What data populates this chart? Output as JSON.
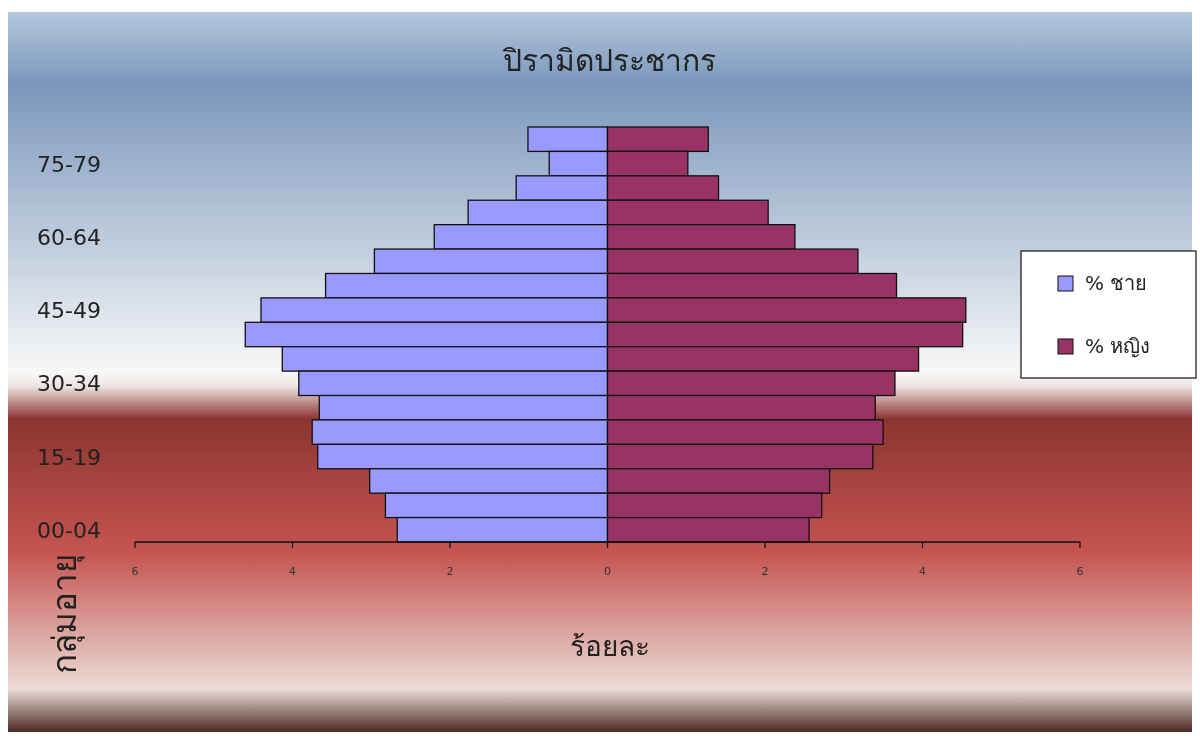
{
  "chart_data": {
    "type": "bar",
    "orientation": "horizontal",
    "stacked": true,
    "title": "ปิรามิดประชากร",
    "xlabel": "ร้อยละ",
    "ylabel": "กลุ่มอายุ",
    "categories": [
      null,
      "75-79",
      null,
      null,
      "60-64",
      null,
      null,
      "45-49",
      null,
      null,
      "30-34",
      null,
      null,
      "15-19",
      null,
      null,
      "00-04"
    ],
    "series": [
      {
        "name": "% ชาย",
        "color": "#9999ff",
        "values": [
          -1.01,
          -0.74,
          -1.16,
          -1.77,
          -2.2,
          -2.96,
          -3.58,
          -4.4,
          -4.6,
          -4.13,
          -3.92,
          -3.66,
          -3.75,
          -3.68,
          -3.02,
          -2.82,
          -2.67
        ]
      },
      {
        "name": "% หญิง",
        "color": "#993366",
        "values": [
          1.28,
          1.02,
          1.41,
          2.04,
          2.38,
          3.18,
          3.67,
          4.55,
          4.51,
          3.95,
          3.65,
          3.4,
          3.5,
          3.37,
          2.82,
          2.72,
          2.56
        ]
      }
    ],
    "xlim": [
      -6,
      6
    ],
    "xticks": [
      {
        "value": -6,
        "label": "6"
      },
      {
        "value": -4,
        "label": "4"
      },
      {
        "value": -2,
        "label": "2"
      },
      0,
      2,
      4,
      6
    ],
    "legend": "right"
  }
}
